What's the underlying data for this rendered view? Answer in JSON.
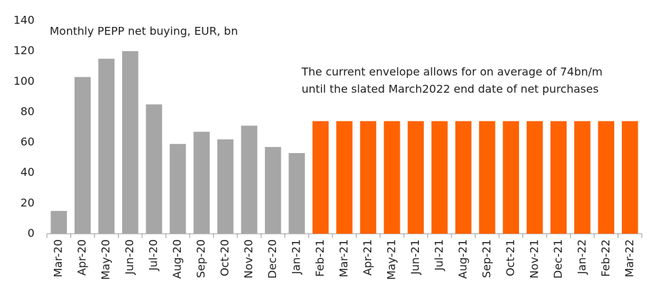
{
  "chart_data": {
    "type": "bar",
    "title": "Monthly PEPP net buying, EUR, bn",
    "annotations": [
      "The current envelope allows for on average of 74bn/m",
      "until the slated March2022 end date of net purchases"
    ],
    "categories": [
      "Mar-20",
      "Apr-20",
      "May-20",
      "Jun-20",
      "Jul-20",
      "Aug-20",
      "Sep-20",
      "Oct-20",
      "Nov-20",
      "Dec-20",
      "Jan-21",
      "Feb-21",
      "Mar-21",
      "Apr-21",
      "May-21",
      "Jun-21",
      "Jul-21",
      "Aug-21",
      "Sep-21",
      "Oct-21",
      "Nov-21",
      "Dec-21",
      "Jan-22",
      "Feb-22",
      "Mar-22"
    ],
    "series": [
      {
        "color": "#a6a6a6",
        "values": [
          15,
          103,
          115,
          120,
          85,
          59,
          67,
          62,
          71,
          57,
          53,
          null,
          null,
          null,
          null,
          null,
          null,
          null,
          null,
          null,
          null,
          null,
          null,
          null,
          null
        ]
      },
      {
        "color": "#ff6200",
        "values": [
          null,
          null,
          null,
          null,
          null,
          null,
          null,
          null,
          null,
          null,
          null,
          74,
          74,
          74,
          74,
          74,
          74,
          74,
          74,
          74,
          74,
          74,
          74,
          74,
          74
        ]
      }
    ],
    "ylim": [
      0,
      140
    ],
    "yticks": [
      0,
      20,
      40,
      60,
      80,
      100,
      120,
      140
    ],
    "grid": false
  }
}
